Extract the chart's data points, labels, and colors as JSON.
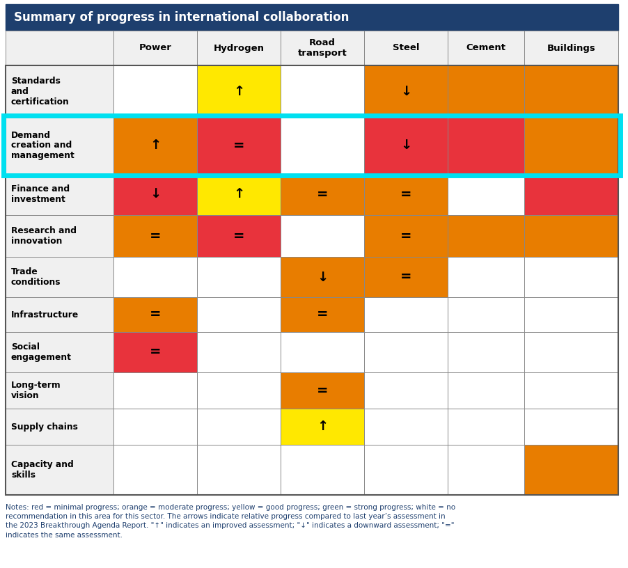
{
  "title": "Summary of progress in international collaboration",
  "title_bg": "#1e3f6e",
  "title_color": "white",
  "col_headers": [
    "",
    "Power",
    "Hydrogen",
    "Road\ntransport",
    "Steel",
    "Cement",
    "Buildings"
  ],
  "row_headers": [
    "Standards\nand\ncertification",
    "Demand\ncreation and\nmanagement",
    "Finance and\ninvestment",
    "Research and\ninnovation",
    "Trade\nconditions",
    "Infrastructure",
    "Social\nengagement",
    "Long-term\nvision",
    "Supply chains",
    "Capacity and\nskills"
  ],
  "highlight_row": 1,
  "highlight_color": "#00e0f0",
  "cell_data": [
    [
      {
        "color": "white",
        "symbol": ""
      },
      {
        "color": "yellow",
        "symbol": "↑"
      },
      {
        "color": "white",
        "symbol": ""
      },
      {
        "color": "orange",
        "symbol": "↓"
      },
      {
        "color": "orange",
        "symbol": ""
      },
      {
        "color": "orange",
        "symbol": ""
      }
    ],
    [
      {
        "color": "orange",
        "symbol": "↑"
      },
      {
        "color": "red",
        "symbol": "="
      },
      {
        "color": "white",
        "symbol": ""
      },
      {
        "color": "red",
        "symbol": "↓"
      },
      {
        "color": "red",
        "symbol": ""
      },
      {
        "color": "orange",
        "symbol": ""
      }
    ],
    [
      {
        "color": "red",
        "symbol": "↓"
      },
      {
        "color": "yellow",
        "symbol": "↑"
      },
      {
        "color": "orange",
        "symbol": "="
      },
      {
        "color": "orange",
        "symbol": "="
      },
      {
        "color": "white",
        "symbol": ""
      },
      {
        "color": "red",
        "symbol": ""
      }
    ],
    [
      {
        "color": "orange",
        "symbol": "="
      },
      {
        "color": "red",
        "symbol": "="
      },
      {
        "color": "white",
        "symbol": ""
      },
      {
        "color": "orange",
        "symbol": "="
      },
      {
        "color": "orange",
        "symbol": ""
      },
      {
        "color": "orange",
        "symbol": ""
      }
    ],
    [
      {
        "color": "white",
        "symbol": ""
      },
      {
        "color": "white",
        "symbol": ""
      },
      {
        "color": "orange",
        "symbol": "↓"
      },
      {
        "color": "orange",
        "symbol": "="
      },
      {
        "color": "white",
        "symbol": ""
      },
      {
        "color": "white",
        "symbol": ""
      }
    ],
    [
      {
        "color": "orange",
        "symbol": "="
      },
      {
        "color": "white",
        "symbol": ""
      },
      {
        "color": "orange",
        "symbol": "="
      },
      {
        "color": "white",
        "symbol": ""
      },
      {
        "color": "white",
        "symbol": ""
      },
      {
        "color": "white",
        "symbol": ""
      }
    ],
    [
      {
        "color": "red",
        "symbol": "="
      },
      {
        "color": "white",
        "symbol": ""
      },
      {
        "color": "white",
        "symbol": ""
      },
      {
        "color": "white",
        "symbol": ""
      },
      {
        "color": "white",
        "symbol": ""
      },
      {
        "color": "white",
        "symbol": ""
      }
    ],
    [
      {
        "color": "white",
        "symbol": ""
      },
      {
        "color": "white",
        "symbol": ""
      },
      {
        "color": "orange",
        "symbol": "="
      },
      {
        "color": "white",
        "symbol": ""
      },
      {
        "color": "white",
        "symbol": ""
      },
      {
        "color": "white",
        "symbol": ""
      }
    ],
    [
      {
        "color": "white",
        "symbol": ""
      },
      {
        "color": "white",
        "symbol": ""
      },
      {
        "color": "yellow",
        "symbol": "↑"
      },
      {
        "color": "white",
        "symbol": ""
      },
      {
        "color": "white",
        "symbol": ""
      },
      {
        "color": "white",
        "symbol": ""
      }
    ],
    [
      {
        "color": "white",
        "symbol": ""
      },
      {
        "color": "white",
        "symbol": ""
      },
      {
        "color": "white",
        "symbol": ""
      },
      {
        "color": "white",
        "symbol": ""
      },
      {
        "color": "white",
        "symbol": ""
      },
      {
        "color": "orange",
        "symbol": ""
      }
    ]
  ],
  "footnote": "Notes: red = minimal progress; orange = moderate progress; yellow = good progress; green = strong progress; white = no\nrecommendation in this area for this sector. The arrows indicate relative progress compared to last year’s assessment in\nthe 2023 Breakthrough Agenda Report. \"↑\" indicates an improved assessment; \"↓\" indicates a downward assessment; \"=\"\nindicates the same assessment.",
  "footnote_color": "#1e3f6e"
}
